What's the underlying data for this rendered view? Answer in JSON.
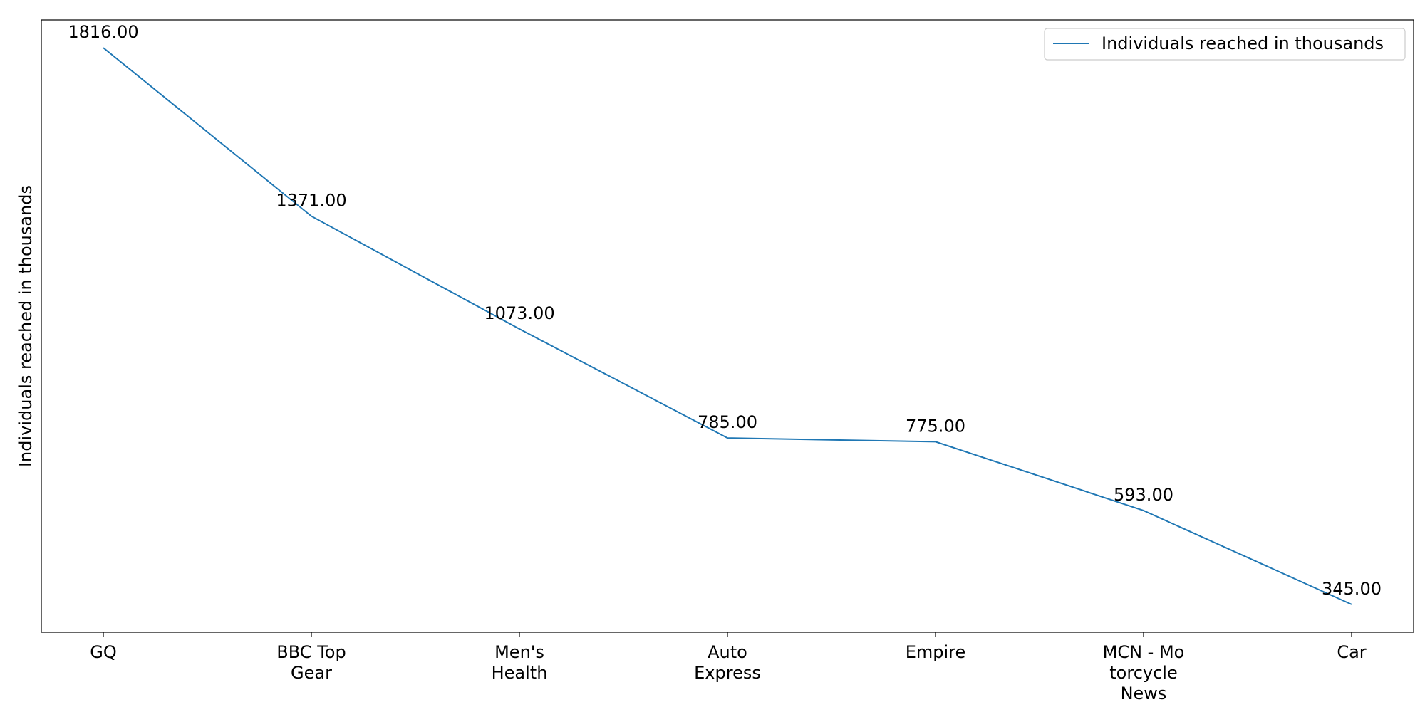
{
  "chart_data": {
    "type": "line",
    "categories": [
      [
        "GQ"
      ],
      [
        "BBC Top",
        "Gear"
      ],
      [
        "Men's",
        "Health"
      ],
      [
        "Auto",
        "Express"
      ],
      [
        "Empire"
      ],
      [
        "MCN - Mo",
        "torcycle",
        "News"
      ],
      [
        "Car"
      ]
    ],
    "series": [
      {
        "name": "Individuals reached in thousands",
        "values": [
          1816,
          1371,
          1073,
          785,
          775,
          593,
          345
        ],
        "labels": [
          "1816.00",
          "1371.00",
          "1073.00",
          "785.00",
          "775.00",
          "593.00",
          "345.00"
        ],
        "color": "#1f77b4"
      }
    ],
    "xlabel": "",
    "ylabel": "Individuals reached in thousands",
    "ylim": [
      271.45,
      1889.55
    ],
    "y_ticks_visible": false,
    "grid": false,
    "legend": "top-right"
  }
}
